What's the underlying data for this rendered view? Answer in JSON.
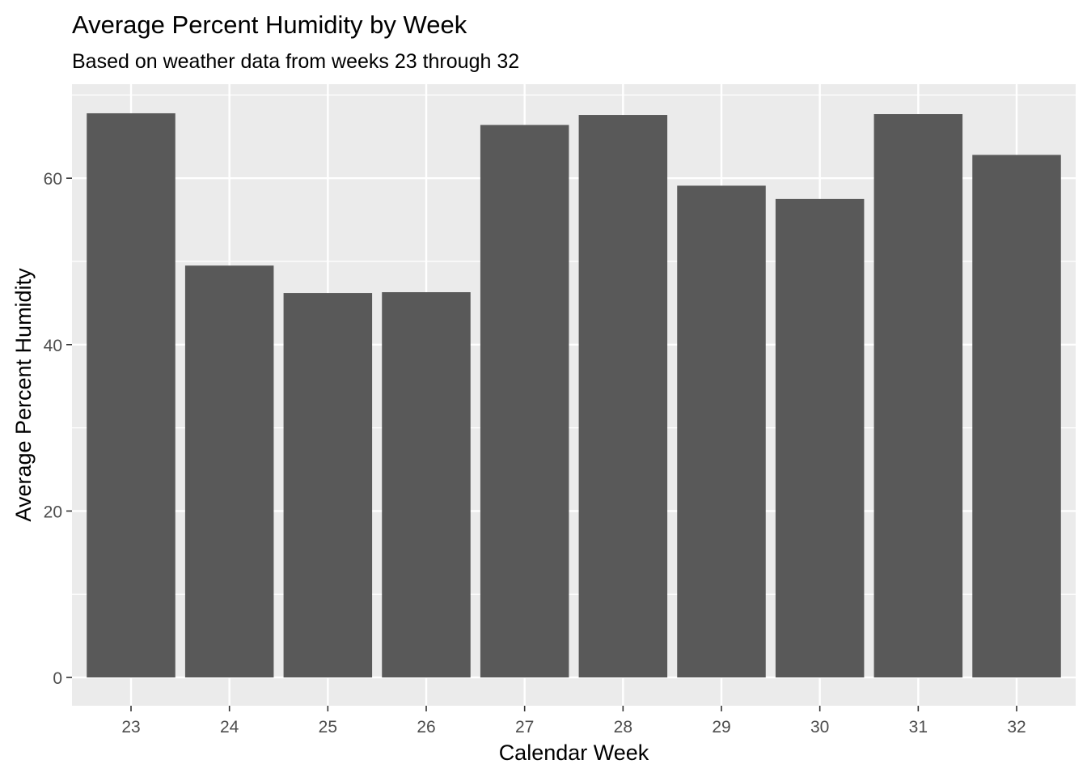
{
  "chart_data": {
    "type": "bar",
    "title": "Average Percent Humidity by Week",
    "subtitle": "Based on weather data from weeks 23 through 32",
    "xlabel": "Calendar Week",
    "ylabel": "Average Percent Humidity",
    "categories": [
      "23",
      "24",
      "25",
      "26",
      "27",
      "28",
      "29",
      "30",
      "31",
      "32"
    ],
    "values": [
      67.8,
      49.5,
      46.2,
      46.3,
      66.4,
      67.6,
      59.1,
      57.5,
      67.7,
      62.8
    ],
    "ylim": [
      -3.4,
      71.3
    ],
    "yticks": [
      0,
      20,
      40,
      60
    ],
    "grid": true,
    "legend": "none",
    "colors": {
      "bar": "#595959",
      "panel": "#ebebeb",
      "gridline": "#ffffff",
      "tick_label": "#4d4d4d",
      "text": "#000000"
    }
  }
}
